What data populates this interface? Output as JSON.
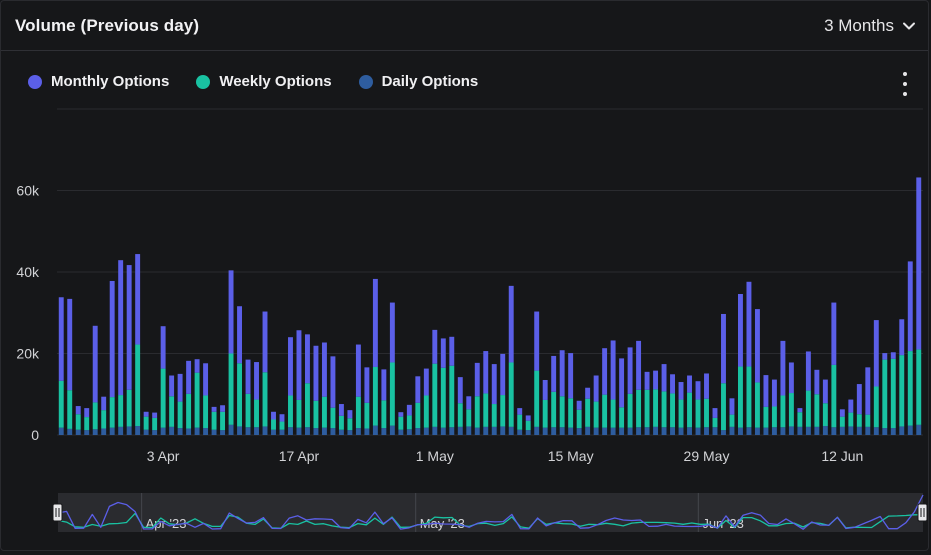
{
  "header": {
    "title": "Volume (Previous day)",
    "range_label": "3 Months"
  },
  "colors": {
    "monthly": "#5b5fe8",
    "weekly": "#19c2a2",
    "daily": "#2e5d9f",
    "background": "#161719",
    "grid": "#2a2b2f",
    "axis_text": "#d2d3d6"
  },
  "icons": {
    "range_dropdown": "chevron-down-icon",
    "menu": "kebab-menu-icon",
    "navigator_handle": "drag-handle-icon"
  },
  "chart_data": {
    "type": "bar",
    "stacked": true,
    "title": "Volume (Previous day)",
    "xlabel": "",
    "ylabel": "",
    "ylim": [
      0,
      80000
    ],
    "y_ticks": [
      0,
      20000,
      40000,
      60000
    ],
    "y_tick_labels": [
      "0",
      "20k",
      "40k",
      "60k"
    ],
    "x_ticks": [
      {
        "index": 12,
        "label": "3 Apr"
      },
      {
        "index": 28,
        "label": "17 Apr"
      },
      {
        "index": 44,
        "label": "1 May"
      },
      {
        "index": 60,
        "label": "15 May"
      },
      {
        "index": 76,
        "label": "29 May"
      },
      {
        "index": 92,
        "label": "12 Jun"
      }
    ],
    "grid": "horizontal",
    "legend_position": "top-left",
    "categories_count": 102,
    "series": [
      {
        "name": "Daily Options",
        "values": [
          1800,
          1500,
          1300,
          1200,
          1400,
          1600,
          1800,
          2000,
          2100,
          2200,
          1300,
          1200,
          1800,
          2000,
          1700,
          1600,
          1800,
          1700,
          1300,
          1200,
          2500,
          2100,
          1900,
          1900,
          2100,
          1300,
          1300,
          1900,
          1800,
          1900,
          1700,
          1800,
          1700,
          1300,
          1200,
          1700,
          1600,
          2300,
          1700,
          2300,
          1300,
          1400,
          1700,
          1800,
          2000,
          1800,
          1900,
          2000,
          2100,
          1800,
          2000,
          2000,
          2100,
          2000,
          1300,
          1200,
          2000,
          1800,
          1900,
          1900,
          1800,
          1700,
          2000,
          1800,
          1800,
          1800,
          1800,
          1800,
          1900,
          1900,
          2000,
          1900,
          1900,
          1800,
          1900,
          1800,
          1900,
          1900,
          1200,
          2000,
          1800,
          1900,
          1800,
          1800,
          1900,
          1900,
          2100,
          2000,
          2000,
          2000,
          2200,
          1900,
          2000,
          2100,
          2000,
          2000,
          1900,
          1700,
          1700,
          2100,
          2300,
          2500
        ]
      },
      {
        "name": "Weekly Options",
        "values": [
          11500,
          9500,
          3800,
          3200,
          6600,
          4500,
          7500,
          7800,
          9000,
          20000,
          3200,
          3000,
          14500,
          7500,
          6500,
          8500,
          13500,
          8000,
          4400,
          4500,
          17500,
          15500,
          8200,
          6800,
          13300,
          2500,
          2000,
          7800,
          6800,
          10800,
          6700,
          7600,
          5000,
          3400,
          2900,
          7700,
          6300,
          14400,
          6800,
          15500,
          3200,
          3400,
          6200,
          7900,
          15500,
          14700,
          15100,
          5800,
          4200,
          7700,
          8200,
          5600,
          7700,
          15800,
          3700,
          2300,
          13800,
          6800,
          8700,
          7600,
          7200,
          4500,
          6900,
          6400,
          8100,
          6900,
          5000,
          8300,
          9200,
          9200,
          9200,
          8800,
          8300,
          6900,
          8500,
          6900,
          7000,
          2300,
          11500,
          3000,
          15000,
          14900,
          11100,
          5100,
          5100,
          7800,
          8200,
          3600,
          8900,
          8000,
          5600,
          15300,
          2500,
          3400,
          3100,
          3000,
          10000,
          16800,
          17000,
          17500,
          18300,
          18500
        ]
      },
      {
        "name": "Monthly Options",
        "values": [
          20500,
          22400,
          2000,
          2200,
          18800,
          3300,
          28500,
          33100,
          30600,
          22200,
          1200,
          1300,
          10400,
          5100,
          6800,
          8100,
          3300,
          7900,
          1200,
          1600,
          20400,
          14000,
          8400,
          9200,
          14900,
          1900,
          1800,
          14300,
          17100,
          12000,
          13500,
          13300,
          12600,
          2900,
          2000,
          12800,
          8700,
          21600,
          7600,
          14700,
          1100,
          2600,
          6500,
          6600,
          8300,
          7200,
          7100,
          6400,
          3200,
          8200,
          10400,
          9800,
          10100,
          18800,
          1600,
          1300,
          14500,
          4900,
          8800,
          11300,
          11100,
          2200,
          2700,
          6400,
          11400,
          14500,
          12000,
          11400,
          12000,
          4400,
          4600,
          6700,
          4700,
          4300,
          4200,
          4500,
          6200,
          2400,
          17000,
          4000,
          17800,
          20800,
          18000,
          7800,
          6600,
          13400,
          7500,
          1000,
          9600,
          6000,
          5800,
          15300,
          1800,
          3200,
          7400,
          11600,
          16300,
          1600,
          1600,
          8800,
          22000,
          42200
        ]
      }
    ],
    "navigator": {
      "labels": [
        "Apr '23",
        "May '23",
        "Jun '23"
      ],
      "label_indices": [
        10,
        42,
        75
      ]
    }
  }
}
